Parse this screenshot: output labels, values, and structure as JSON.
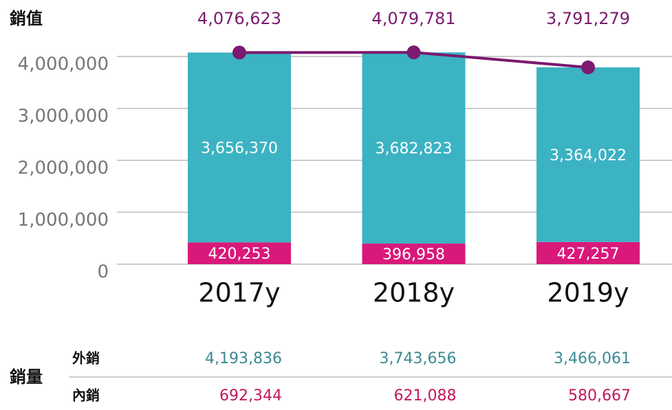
{
  "chart_data": {
    "type": "bar",
    "stacked": true,
    "title": "銷值",
    "categories": [
      "2017y",
      "2018y",
      "2019y"
    ],
    "series": [
      {
        "color": "#d8197a",
        "values": [
          420253,
          396958,
          427257
        ],
        "value_labels": [
          "420,253",
          "396,958",
          "427,257"
        ]
      },
      {
        "color": "#3bb3c3",
        "values": [
          3656370,
          3682823,
          3364022
        ],
        "value_labels": [
          "3,656,370",
          "3,682,823",
          "3,364,022"
        ]
      },
      {
        "type": "line",
        "color": "#7b1a6f",
        "values": [
          4076623,
          4079781,
          3791279
        ],
        "value_labels": [
          "4,076,623",
          "4,079,781",
          "3,791,279"
        ]
      }
    ],
    "ylim": [
      0,
      4400000
    ],
    "yticks": [
      0,
      {
        "value": 1000000,
        "label": "1,000,000"
      },
      {
        "value": 2000000,
        "label": "2,000,000"
      },
      {
        "value": 3000000,
        "label": "3,000,000"
      },
      {
        "value": 4000000,
        "label": "4,000,000"
      }
    ],
    "grid": true
  },
  "table": {
    "title": "銷量",
    "rows": [
      {
        "label": "外銷",
        "color": "#3a8a93",
        "values": [
          "4,193,836",
          "3,743,656",
          "3,466,061"
        ]
      },
      {
        "label": "內銷",
        "color": "#c2185b",
        "values": [
          "692,344",
          "621,088",
          "580,667"
        ]
      }
    ]
  }
}
